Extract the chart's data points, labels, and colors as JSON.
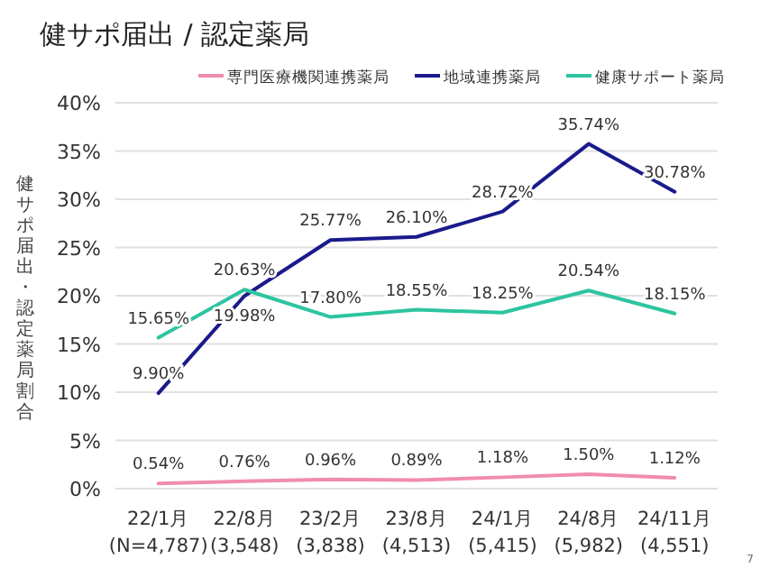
{
  "chart_data": {
    "type": "line",
    "title": "健サポ届出 / 認定薬局",
    "ylabel": "健サポ届出・認定薬局割合",
    "categories": [
      "22/1月\n(N=4,787)",
      "22/8月\n(3,548)",
      "23/2月\n(3,838)",
      "23/8月\n(4,513)",
      "24/1月\n(5,415)",
      "24/8月\n(5,982)",
      "24/11月\n(4,551)"
    ],
    "series": [
      {
        "name": "専門医療機関連携薬局",
        "color": "#f08cb0",
        "values": [
          0.54,
          0.76,
          0.96,
          0.89,
          1.18,
          1.5,
          1.12
        ],
        "value_labels": [
          "0.54%",
          "0.76%",
          "0.96%",
          "0.89%",
          "1.18%",
          "1.50%",
          "1.12%"
        ]
      },
      {
        "name": "地域連携薬局",
        "color": "#1a1a8c",
        "values": [
          9.9,
          19.98,
          25.77,
          26.1,
          28.72,
          35.74,
          30.78
        ],
        "value_labels": [
          "9.90%",
          "19.98%",
          "25.77%",
          "26.10%",
          "28.72%",
          "35.74%",
          "30.78%"
        ]
      },
      {
        "name": "健康サポート薬局",
        "color": "#2ec4a0",
        "values": [
          15.65,
          20.63,
          17.8,
          18.55,
          18.25,
          20.54,
          18.15
        ],
        "value_labels": [
          "15.65%",
          "20.63%",
          "17.80%",
          "18.55%",
          "18.25%",
          "20.54%",
          "18.15%"
        ]
      }
    ],
    "ylim": [
      0,
      40
    ],
    "yticks": [
      {
        "value": 0,
        "label": "0%"
      },
      {
        "value": 5,
        "label": "5%"
      },
      {
        "value": 10,
        "label": "10%"
      },
      {
        "value": 15,
        "label": "15%"
      },
      {
        "value": 20,
        "label": "20%"
      },
      {
        "value": 25,
        "label": "25%"
      },
      {
        "value": 30,
        "label": "30%"
      },
      {
        "value": 35,
        "label": "35%"
      },
      {
        "value": 40,
        "label": "40%"
      }
    ],
    "grid": "y",
    "legend": "top",
    "marker": "none",
    "line_style": "solid",
    "annotations": [
      "7"
    ]
  }
}
